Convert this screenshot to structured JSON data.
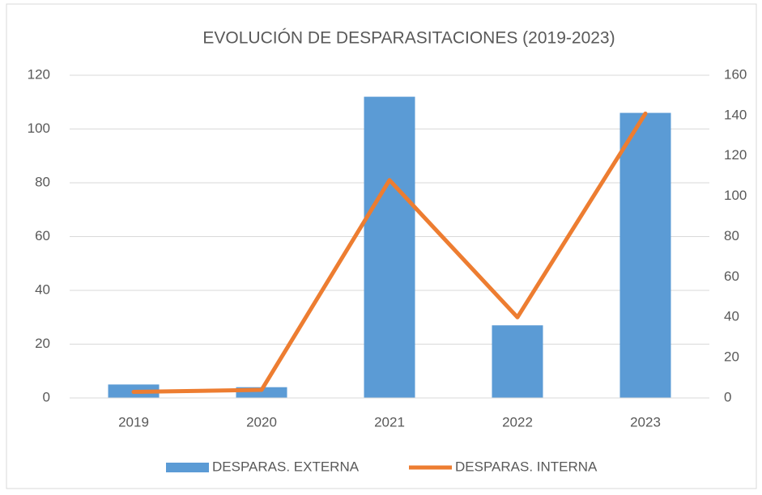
{
  "chart_data": {
    "type": "bar",
    "title": "EVOLUCIÓN DE DESPARASITACIONES (2019-2023)",
    "categories": [
      "2019",
      "2020",
      "2021",
      "2022",
      "2023"
    ],
    "series": [
      {
        "name": "DESPARAS. EXTERNA",
        "type": "bar",
        "color": "#5b9bd5",
        "values": [
          5,
          4,
          112,
          27,
          106
        ]
      },
      {
        "name": "DESPARAS. INTERNA",
        "type": "line",
        "axis": "y2",
        "color": "#ed7d31",
        "values": [
          3,
          4,
          108,
          40,
          141
        ]
      }
    ],
    "ylim": [
      0,
      120
    ],
    "yticks": [
      0,
      20,
      40,
      60,
      80,
      100,
      120
    ],
    "y2lim": [
      0,
      160
    ],
    "y2ticks": [
      0,
      20,
      40,
      60,
      80,
      100,
      120,
      140,
      160
    ],
    "grid": true,
    "legend": "bottom"
  }
}
